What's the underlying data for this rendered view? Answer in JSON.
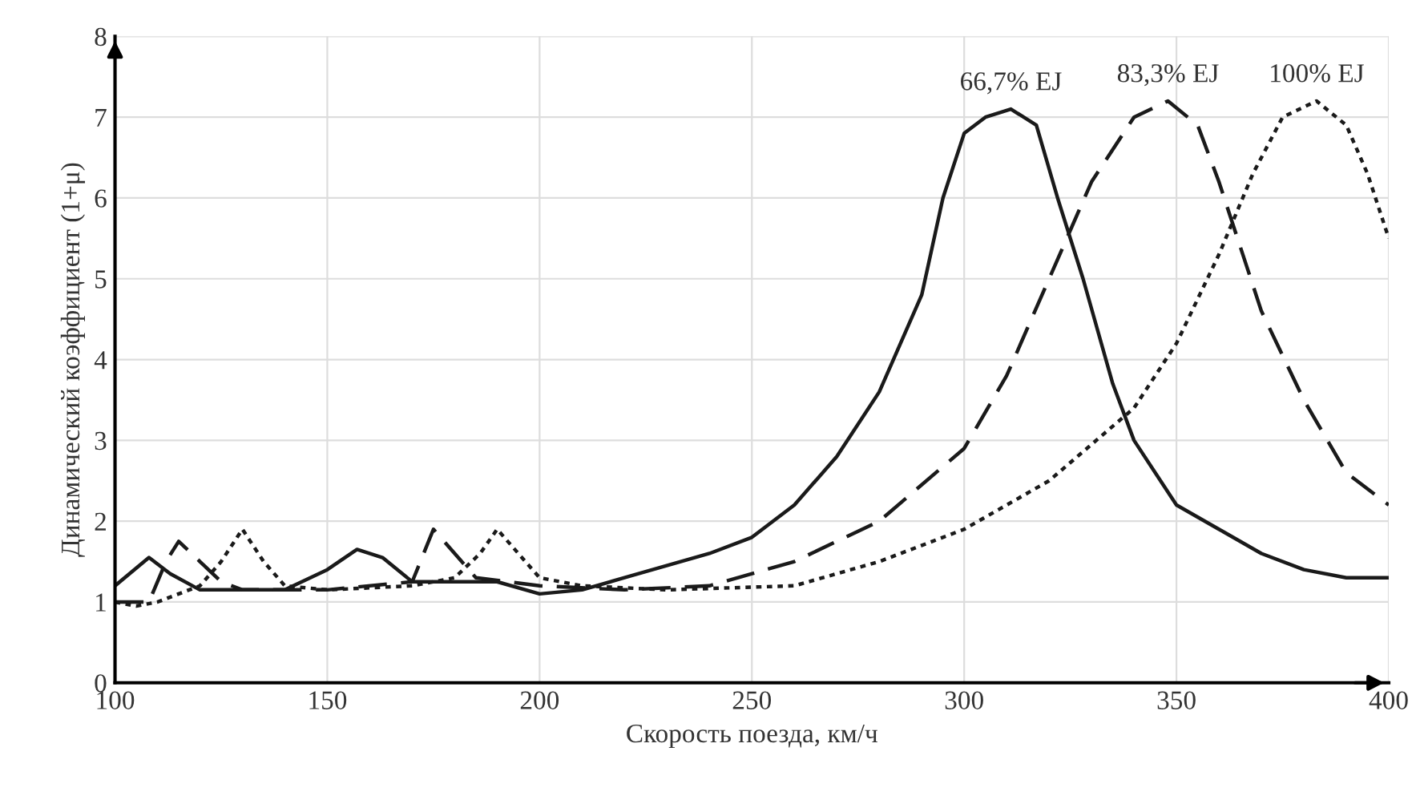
{
  "chart_data": {
    "type": "line",
    "xlabel": "Скорость поезда, км/ч",
    "ylabel": "Динамический коэффициент (1+μ)",
    "xlim": [
      100,
      400
    ],
    "ylim": [
      0,
      8
    ],
    "xticks": [
      100,
      150,
      200,
      250,
      300,
      350,
      400
    ],
    "yticks": [
      0,
      1,
      2,
      3,
      4,
      5,
      6,
      7,
      8
    ],
    "grid": true,
    "legend": false,
    "series": [
      {
        "name": "66,7% EJ",
        "color": "#1a1a1a",
        "line_style": "solid",
        "x": [
          100,
          108,
          113,
          120,
          140,
          150,
          157,
          163,
          170,
          190,
          200,
          210,
          220,
          240,
          250,
          260,
          270,
          280,
          290,
          295,
          300,
          305,
          311,
          317,
          322,
          328,
          335,
          340,
          345,
          350,
          360,
          370,
          380,
          390,
          400
        ],
        "values": [
          1.2,
          1.55,
          1.35,
          1.15,
          1.15,
          1.4,
          1.65,
          1.55,
          1.25,
          1.25,
          1.1,
          1.15,
          1.3,
          1.6,
          1.8,
          2.2,
          2.8,
          3.6,
          4.8,
          6.0,
          6.8,
          7.0,
          7.1,
          6.9,
          6.0,
          5.0,
          3.7,
          3.0,
          2.6,
          2.2,
          1.9,
          1.6,
          1.4,
          1.3,
          1.3
        ]
      },
      {
        "name": "83,3% EJ",
        "color": "#1a1a1a",
        "line_style": "dashed",
        "x": [
          100,
          108,
          112,
          115,
          120,
          125,
          130,
          150,
          170,
          175,
          180,
          185,
          200,
          220,
          240,
          260,
          280,
          300,
          310,
          320,
          330,
          340,
          348,
          355,
          360,
          370,
          380,
          390,
          400
        ],
        "values": [
          1.0,
          1.0,
          1.5,
          1.75,
          1.5,
          1.25,
          1.15,
          1.15,
          1.25,
          1.9,
          1.6,
          1.3,
          1.2,
          1.15,
          1.2,
          1.5,
          2.0,
          2.9,
          3.8,
          5.0,
          6.2,
          7.0,
          7.2,
          6.9,
          6.2,
          4.6,
          3.5,
          2.6,
          2.2
        ]
      },
      {
        "name": "100% EJ",
        "color": "#1a1a1a",
        "line_style": "dotted",
        "x": [
          100,
          105,
          110,
          120,
          125,
          130,
          135,
          140,
          150,
          170,
          180,
          186,
          190,
          195,
          200,
          210,
          230,
          260,
          280,
          300,
          320,
          340,
          350,
          360,
          368,
          375,
          383,
          390,
          395,
          400
        ],
        "values": [
          1.0,
          0.95,
          1.0,
          1.2,
          1.5,
          1.9,
          1.5,
          1.2,
          1.15,
          1.2,
          1.3,
          1.6,
          1.9,
          1.6,
          1.3,
          1.2,
          1.15,
          1.2,
          1.5,
          1.9,
          2.5,
          3.4,
          4.2,
          5.3,
          6.3,
          7.0,
          7.2,
          6.9,
          6.3,
          5.5
        ]
      }
    ]
  }
}
